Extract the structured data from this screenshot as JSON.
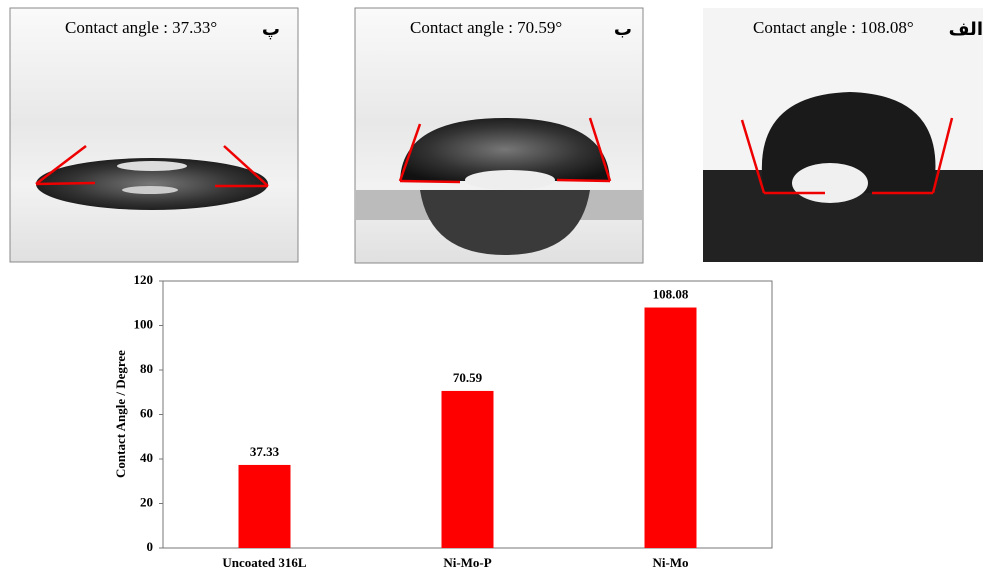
{
  "panels": [
    {
      "caption": "Contact angle : 37.33°",
      "label": "پ"
    },
    {
      "caption": "Contact angle : 70.59°",
      "label": "ب"
    },
    {
      "caption": "Contact angle : 108.08°",
      "label": "الف"
    }
  ],
  "chart_data": {
    "type": "bar",
    "y_label": "Contact Angle / Degree",
    "categories": [
      "Uncoated 316L",
      "Ni-Mo-P",
      "Ni-Mo"
    ],
    "values": [
      37.33,
      70.59,
      108.08
    ],
    "color": "#ff0000",
    "ylim": [
      0,
      120
    ],
    "yticks": [
      0,
      20,
      40,
      60,
      80,
      100,
      120
    ],
    "grid": false
  }
}
